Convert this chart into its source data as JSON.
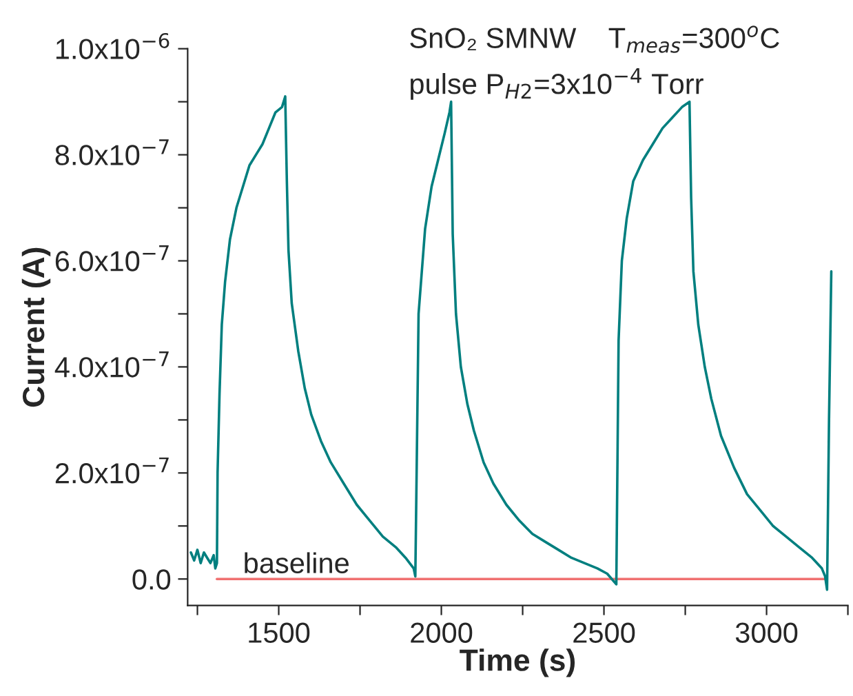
{
  "chart_data": {
    "type": "line",
    "xlabel": "Time (s)",
    "ylabel": "Current (A)",
    "annotations": [
      "SnO₂ SMNW    T$_{meas}$=300$^{o}$C",
      "pulse P$_{H2}$=3x10$^{−4}$ Torr"
    ],
    "series": [
      {
        "color": "#007f7f",
        "x": [
          1230,
          1240,
          1250,
          1260,
          1270,
          1280,
          1290,
          1300,
          1305,
          1310,
          1312,
          1318,
          1325,
          1335,
          1350,
          1370,
          1390,
          1410,
          1430,
          1450,
          1470,
          1490,
          1510,
          1520,
          1525,
          1530,
          1540,
          1560,
          1580,
          1600,
          1630,
          1660,
          1700,
          1740,
          1780,
          1820,
          1860,
          1890,
          1915,
          1920,
          1924,
          1930,
          1950,
          1970,
          1990,
          2010,
          2025,
          2030,
          2035,
          2045,
          2060,
          2080,
          2100,
          2130,
          2160,
          2200,
          2240,
          2280,
          2320,
          2360,
          2400,
          2440,
          2480,
          2510,
          2538,
          2542,
          2545,
          2555,
          2570,
          2590,
          2620,
          2650,
          2680,
          2710,
          2740,
          2763,
          2768,
          2775,
          2790,
          2810,
          2830,
          2860,
          2900,
          2940,
          2980,
          3020,
          3060,
          3100,
          3140,
          3170,
          3180,
          3186,
          3192,
          3199
        ],
        "values": [
          5e-08,
          3.5e-08,
          5.5e-08,
          3e-08,
          5e-08,
          4e-08,
          3e-08,
          4.5e-08,
          2e-08,
          3e-08,
          2e-07,
          3.5e-07,
          4.8e-07,
          5.6e-07,
          6.4e-07,
          7e-07,
          7.4e-07,
          7.8e-07,
          8e-07,
          8.2e-07,
          8.5e-07,
          8.8e-07,
          8.9e-07,
          9.1e-07,
          7.5e-07,
          6.2e-07,
          5.2e-07,
          4.3e-07,
          3.6e-07,
          3.1e-07,
          2.6e-07,
          2.2e-07,
          1.8e-07,
          1.4e-07,
          1.1e-07,
          8e-08,
          6e-08,
          4e-08,
          2e-08,
          5e-09,
          2e-07,
          5e-07,
          6.6e-07,
          7.4e-07,
          7.9e-07,
          8.4e-07,
          8.8e-07,
          9e-07,
          6.5e-07,
          5e-07,
          4e-07,
          3.3e-07,
          2.8e-07,
          2.2e-07,
          1.8e-07,
          1.4e-07,
          1.1e-07,
          8.5e-08,
          7e-08,
          5.5e-08,
          4e-08,
          3e-08,
          2e-08,
          1e-08,
          -1e-08,
          2.5e-07,
          4.5e-07,
          6e-07,
          6.8e-07,
          7.5e-07,
          7.9e-07,
          8.2e-07,
          8.5e-07,
          8.7e-07,
          8.9e-07,
          9e-07,
          7.2e-07,
          5.8e-07,
          4.8e-07,
          4e-07,
          3.4e-07,
          2.7e-07,
          2.1e-07,
          1.6e-07,
          1.3e-07,
          1e-07,
          8e-08,
          6e-08,
          4e-08,
          2e-08,
          5e-09,
          -2e-08,
          3e-07,
          5.8e-07
        ]
      },
      {
        "name": "baseline",
        "color": "#f07070",
        "x": [
          1310,
          3180
        ],
        "values": [
          0,
          0
        ]
      }
    ],
    "xlim": [
      1220,
      3250
    ],
    "xticks": [
      {
        "value": 1250,
        "label": null
      },
      1500,
      {
        "value": 1750,
        "label": null
      },
      2000,
      {
        "value": 2250,
        "label": null
      },
      2500,
      {
        "value": 2750,
        "label": null
      },
      3000,
      {
        "value": 3250,
        "label": null
      }
    ],
    "ylim": [
      -5e-08,
      1e-06
    ],
    "yticks": [
      {
        "value": 0,
        "label": "0.0"
      },
      {
        "value": 1e-07,
        "label": null
      },
      {
        "value": 2e-07,
        "label": "2.0x10$^{−7}$"
      },
      {
        "value": 3e-07,
        "label": null
      },
      {
        "value": 4e-07,
        "label": "4.0x10$^{−7}$"
      },
      {
        "value": 5e-07,
        "label": null
      },
      {
        "value": 6e-07,
        "label": "6.0x10$^{−7}$"
      },
      {
        "value": 7e-07,
        "label": null
      },
      {
        "value": 8e-07,
        "label": "8.0x10$^{−7}$"
      },
      {
        "value": 9e-07,
        "label": null
      },
      {
        "value": 1e-06,
        "label": "1.0x10$^{−6}$"
      }
    ],
    "grid": false,
    "legend": false
  }
}
